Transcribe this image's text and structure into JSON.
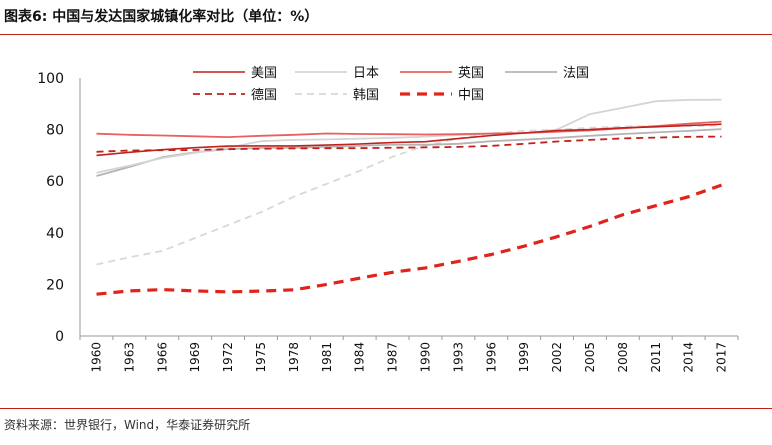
{
  "header": {
    "title": "图表6:  中国与发达国家城镇化率对比（单位：%）"
  },
  "footer": {
    "source": "资料来源：世界银行，Wind，华泰证券研究所"
  },
  "colors": {
    "accent": "#c0211b"
  },
  "chart_data": {
    "type": "line",
    "title": "图表6:  中国与发达国家城镇化率对比（单位：%）",
    "xlabel": "",
    "ylabel": "",
    "ylim": [
      0,
      100
    ],
    "yticks": [
      0,
      20,
      40,
      60,
      80,
      100
    ],
    "x": [
      1960,
      1963,
      1966,
      1969,
      1972,
      1975,
      1978,
      1981,
      1984,
      1987,
      1990,
      1993,
      1996,
      1999,
      2002,
      2005,
      2008,
      2011,
      2014,
      2017
    ],
    "grid": false,
    "legend_position": "top",
    "series": [
      {
        "name": "美国",
        "color": "#c0211b",
        "dash": "solid",
        "width": 1.6,
        "values": [
          70.0,
          71.2,
          72.2,
          73.0,
          73.6,
          73.7,
          73.7,
          74.0,
          74.4,
          75.0,
          75.3,
          76.5,
          77.7,
          78.7,
          79.6,
          80.0,
          80.7,
          81.1,
          81.6,
          82.1
        ]
      },
      {
        "name": "日本",
        "color": "#d4d4d4",
        "dash": "solid",
        "width": 1.8,
        "values": [
          63.3,
          66.0,
          69.0,
          71.0,
          73.0,
          75.5,
          76.0,
          76.2,
          76.5,
          76.8,
          77.3,
          77.9,
          78.3,
          78.6,
          80.0,
          86.0,
          88.5,
          91.0,
          91.5,
          91.6
        ]
      },
      {
        "name": "英国",
        "color": "#e86060",
        "dash": "solid",
        "width": 1.8,
        "values": [
          78.4,
          78.0,
          77.7,
          77.4,
          77.1,
          77.6,
          78.0,
          78.5,
          78.3,
          78.2,
          78.1,
          78.2,
          78.5,
          78.7,
          79.2,
          79.7,
          80.5,
          81.3,
          82.3,
          83.1
        ]
      },
      {
        "name": "法国",
        "color": "#b4b4b4",
        "dash": "solid",
        "width": 1.8,
        "values": [
          62.0,
          65.5,
          69.3,
          71.2,
          72.5,
          72.9,
          73.0,
          73.3,
          73.7,
          74.2,
          74.1,
          74.5,
          75.5,
          76.1,
          76.8,
          77.6,
          78.3,
          78.9,
          79.5,
          80.2
        ]
      },
      {
        "name": "德国",
        "color": "#c0211b",
        "dash": "dashed",
        "width": 1.8,
        "values": [
          71.4,
          71.9,
          72.0,
          72.1,
          72.4,
          72.6,
          72.7,
          72.8,
          72.8,
          73.0,
          73.1,
          73.3,
          73.7,
          74.5,
          75.4,
          76.0,
          76.6,
          76.9,
          77.2,
          77.3
        ]
      },
      {
        "name": "韩国",
        "color": "#d8d8d8",
        "dash": "dashed",
        "width": 1.8,
        "values": [
          27.7,
          30.5,
          33.0,
          38.0,
          43.0,
          48.0,
          54.0,
          59.0,
          64.0,
          69.5,
          73.8,
          76.5,
          78.5,
          79.5,
          80.0,
          80.7,
          81.2,
          81.3,
          81.4,
          81.5
        ]
      },
      {
        "name": "中国",
        "color": "#e0241c",
        "dash": "dashed-bold",
        "width": 3.2,
        "values": [
          16.2,
          17.5,
          18.0,
          17.5,
          17.1,
          17.4,
          17.9,
          20.0,
          22.4,
          24.7,
          26.4,
          28.9,
          31.6,
          34.8,
          38.5,
          42.5,
          47.0,
          50.5,
          54.0,
          58.5
        ]
      }
    ]
  }
}
